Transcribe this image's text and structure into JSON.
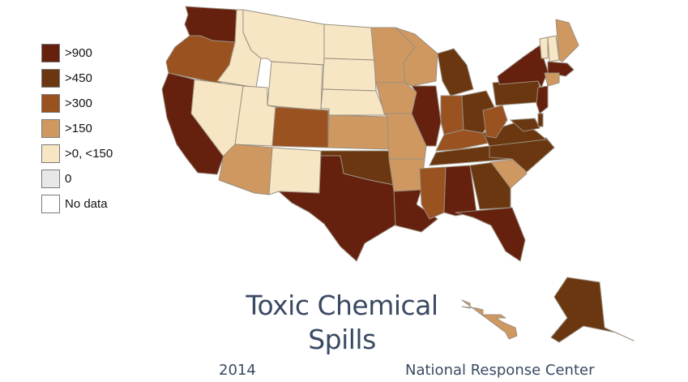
{
  "title_line1": "Toxic Chemical",
  "title_line2": "Spills",
  "year": "2014",
  "source": "National Response Center",
  "legend": [
    {
      "label": ">900",
      "color": "#66200e"
    },
    {
      "label": ">450",
      "color": "#6a3710"
    },
    {
      "label": ">300",
      "color": "#9a5220"
    },
    {
      "label": ">150",
      "color": "#cf9860"
    },
    {
      "label": ">0, <150",
      "color": "#f6e6c4"
    },
    {
      "label": "0",
      "color": "#e8e8e8"
    },
    {
      "label": "No data",
      "color": "#ffffff"
    }
  ],
  "chart_data": {
    "type": "choropleth",
    "classes": [
      ">900",
      ">450",
      ">300",
      ">150",
      ">0, <150",
      "0",
      "No data"
    ],
    "states": {
      "WA": ">900",
      "OR": ">300",
      "CA": ">900",
      "ID": ">0, <150",
      "NV": ">0, <150",
      "MT": ">0, <150",
      "WY": ">0, <150",
      "UT": ">0, <150",
      "CO": ">300",
      "AZ": ">150",
      "NM": ">0, <150",
      "ND": ">0, <150",
      "SD": ">0, <150",
      "NE": ">0, <150",
      "KS": ">150",
      "OK": ">450",
      "TX": ">900",
      "MN": ">150",
      "IA": ">150",
      "MO": ">150",
      "AR": ">150",
      "LA": ">900",
      "WI": ">150",
      "IL": ">900",
      "MI": ">450",
      "IN": ">300",
      "OH": ">450",
      "KY": ">300",
      "TN": ">450",
      "MS": ">300",
      "AL": ">900",
      "GA": ">450",
      "FL": ">900",
      "SC": ">150",
      "NC": ">450",
      "VA": ">450",
      "WV": ">300",
      "PA": ">450",
      "NY": ">900",
      "VT": ">0, <150",
      "NH": ">0, <150",
      "ME": ">150",
      "MA": ">900",
      "CT": ">150",
      "NJ": ">900",
      "MD": ">450",
      "DE": ">450",
      "AK": ">450",
      "HI": ">150"
    }
  }
}
